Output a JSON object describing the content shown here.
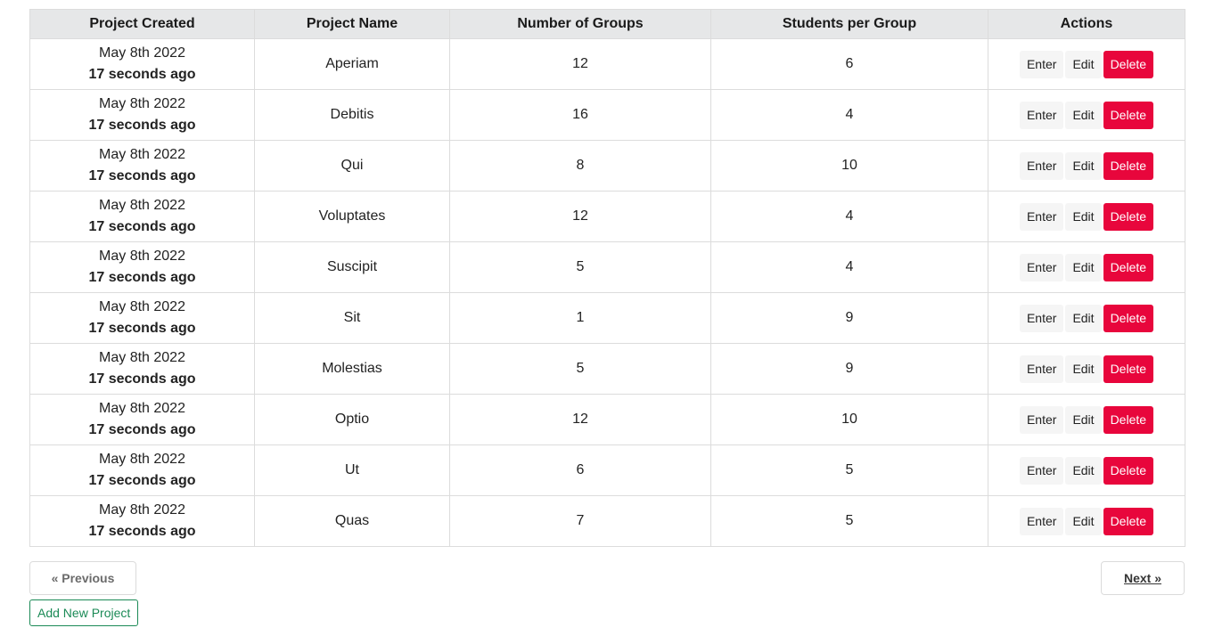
{
  "table": {
    "headers": [
      "Project Created",
      "Project Name",
      "Number of Groups",
      "Students per Group",
      "Actions"
    ],
    "action_labels": {
      "enter": "Enter",
      "edit": "Edit",
      "delete": "Delete"
    },
    "rows": [
      {
        "date": "May 8th 2022",
        "ago": "17 seconds ago",
        "name": "Aperiam",
        "groups": "12",
        "students": "6"
      },
      {
        "date": "May 8th 2022",
        "ago": "17 seconds ago",
        "name": "Debitis",
        "groups": "16",
        "students": "4"
      },
      {
        "date": "May 8th 2022",
        "ago": "17 seconds ago",
        "name": "Qui",
        "groups": "8",
        "students": "10"
      },
      {
        "date": "May 8th 2022",
        "ago": "17 seconds ago",
        "name": "Voluptates",
        "groups": "12",
        "students": "4"
      },
      {
        "date": "May 8th 2022",
        "ago": "17 seconds ago",
        "name": "Suscipit",
        "groups": "5",
        "students": "4"
      },
      {
        "date": "May 8th 2022",
        "ago": "17 seconds ago",
        "name": "Sit",
        "groups": "1",
        "students": "9"
      },
      {
        "date": "May 8th 2022",
        "ago": "17 seconds ago",
        "name": "Molestias",
        "groups": "5",
        "students": "9"
      },
      {
        "date": "May 8th 2022",
        "ago": "17 seconds ago",
        "name": "Optio",
        "groups": "12",
        "students": "10"
      },
      {
        "date": "May 8th 2022",
        "ago": "17 seconds ago",
        "name": "Ut",
        "groups": "6",
        "students": "5"
      },
      {
        "date": "May 8th 2022",
        "ago": "17 seconds ago",
        "name": "Quas",
        "groups": "7",
        "students": "5"
      }
    ]
  },
  "pagination": {
    "previous_label": "« Previous",
    "next_label": "Next »"
  },
  "add_project_label": "Add New Project",
  "colors": {
    "header_bg": "#e6e7e8",
    "delete_bg": "#e8063c",
    "add_green": "#1b8a56"
  }
}
